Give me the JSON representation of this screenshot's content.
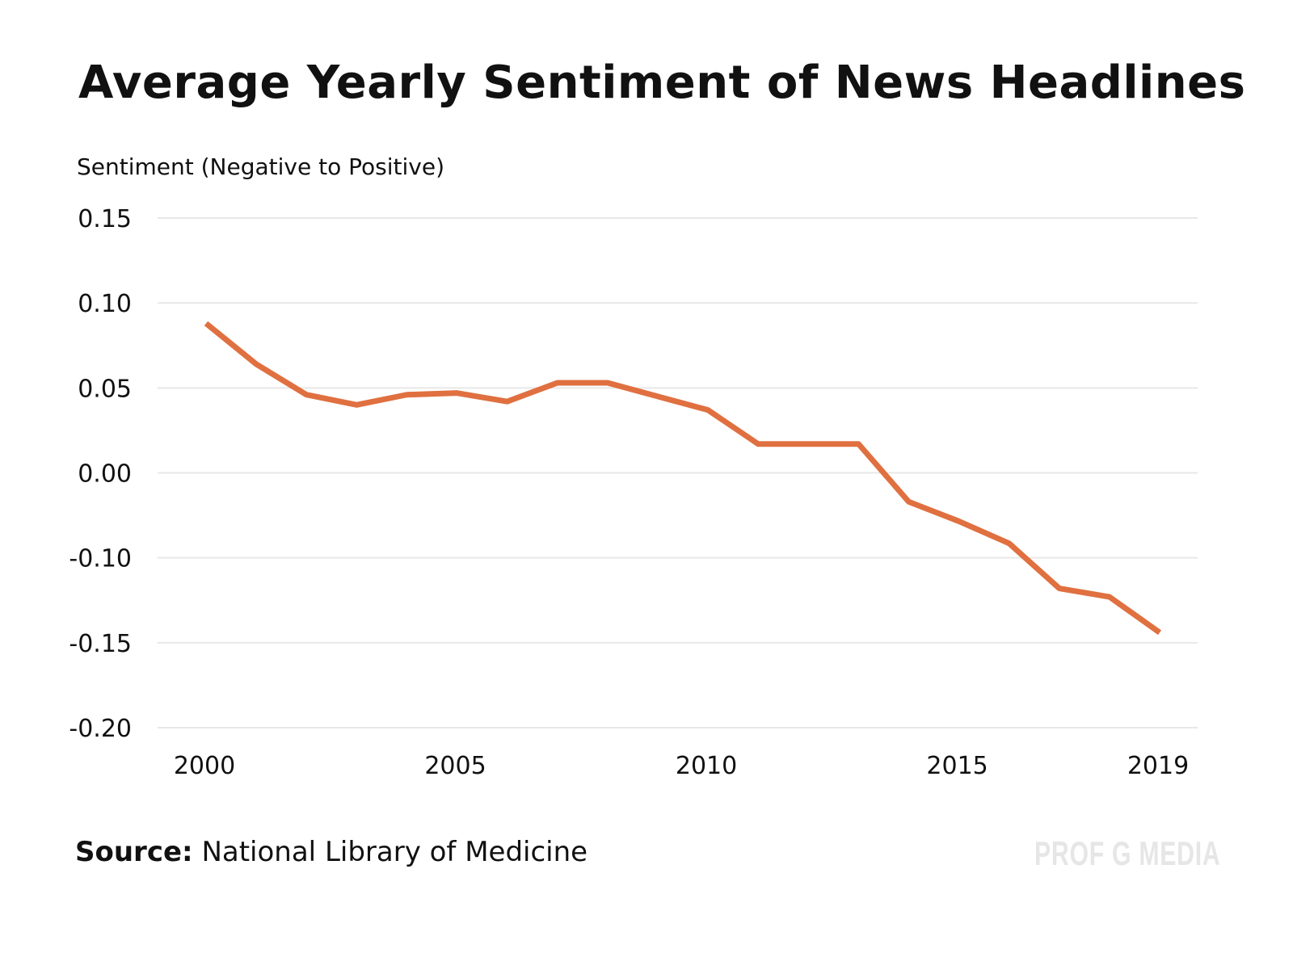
{
  "chart_data": {
    "type": "line",
    "title": "Average Yearly Sentiment of News Headlines",
    "ylabel": "Sentiment (Negative to Positive)",
    "xlabel": "",
    "x": [
      2000,
      2001,
      2002,
      2003,
      2004,
      2005,
      2006,
      2007,
      2008,
      2009,
      2010,
      2011,
      2012,
      2013,
      2014,
      2015,
      2016,
      2017,
      2018,
      2019
    ],
    "series": [
      {
        "name": "Sentiment",
        "color": "#e07040",
        "values": [
          0.088,
          0.064,
          0.046,
          0.04,
          0.046,
          0.047,
          0.042,
          0.053,
          0.053,
          0.045,
          0.037,
          0.017,
          0.017,
          0.017,
          -0.034,
          -0.057,
          -0.083,
          -0.118,
          -0.123,
          -0.144
        ]
      }
    ],
    "y_ticks": [
      0.15,
      0.1,
      0.05,
      0.0,
      -0.1,
      -0.15,
      -0.2
    ],
    "y_tick_labels": [
      "0.15",
      "0.10",
      "0.05",
      "0.00",
      "-0.10",
      "-0.15",
      "-0.20"
    ],
    "x_ticks": [
      2000,
      2005,
      2010,
      2015,
      2019
    ],
    "x_tick_labels": [
      "2000",
      "2005",
      "2010",
      "2015",
      "2019"
    ],
    "xlim": [
      2000,
      2019
    ],
    "ylim": [
      -0.2,
      0.15
    ],
    "grid": true,
    "legend": "none"
  },
  "source": {
    "label": "Source:",
    "text": "National Library of Medicine"
  },
  "watermark": "PROF G MEDIA"
}
